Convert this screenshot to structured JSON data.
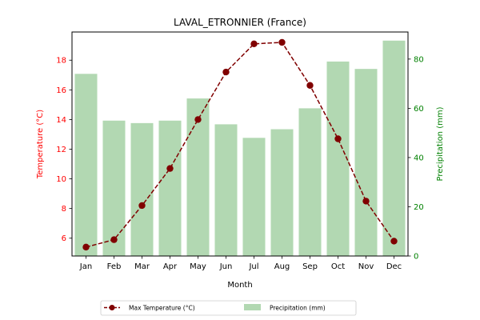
{
  "chart_data": {
    "type": "bar+line",
    "title": "LAVAL_ETRONNIER (France)",
    "xlabel": "Month",
    "categories": [
      "Jan",
      "Feb",
      "Mar",
      "Apr",
      "May",
      "Jun",
      "Jul",
      "Aug",
      "Sep",
      "Oct",
      "Nov",
      "Dec"
    ],
    "left_axis": {
      "label": "Temperature (°C)",
      "color": "#ff0000",
      "ylim": [
        4.8,
        19.9
      ],
      "ticks": [
        6,
        8,
        10,
        12,
        14,
        16,
        18
      ]
    },
    "right_axis": {
      "label": "Precipitation (mm)",
      "color": "#008000",
      "ylim": [
        0,
        91
      ],
      "ticks": [
        0,
        20,
        40,
        60,
        80
      ]
    },
    "series": [
      {
        "name": "Max Temperature (°C)",
        "kind": "line",
        "axis": "left",
        "color": "#800000",
        "values": [
          5.4,
          5.9,
          8.2,
          10.7,
          14.0,
          17.2,
          19.1,
          19.2,
          16.3,
          12.7,
          8.5,
          5.8
        ]
      },
      {
        "name": "Precipitation (mm)",
        "kind": "bar",
        "axis": "right",
        "color": "#b2d8b2",
        "values": [
          74,
          55,
          54,
          55,
          64,
          53.5,
          48,
          51.5,
          60,
          79,
          76,
          87.5
        ]
      }
    ],
    "legend": {
      "placement": "bottom-center",
      "columns": 2
    },
    "grid": false
  }
}
